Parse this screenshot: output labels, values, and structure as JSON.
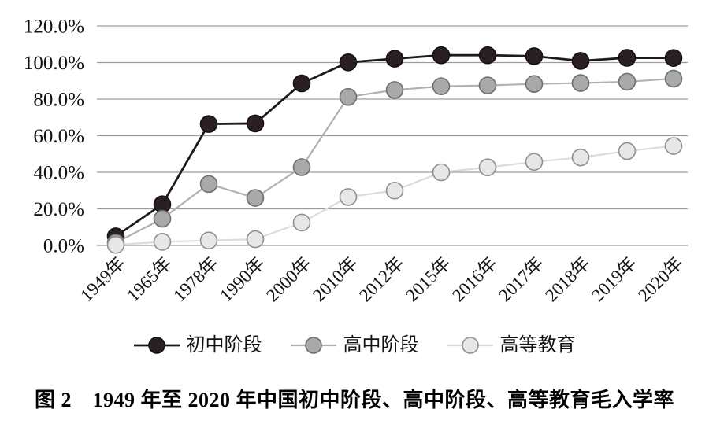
{
  "figure": {
    "caption": "图 2　1949 年至 2020 年中国初中阶段、高中阶段、高等教育毛入学率"
  },
  "colors": {
    "gridline": "#9c9c9c",
    "axis_text": "#141414"
  },
  "chart_data": {
    "type": "line",
    "title": "",
    "xlabel": "",
    "ylabel": "",
    "grid": "horizontal",
    "legend_position": "bottom",
    "ylim": [
      0,
      120
    ],
    "y_ticks": [
      {
        "value": 0,
        "label": "0.0%"
      },
      {
        "value": 20,
        "label": "20.0%"
      },
      {
        "value": 40,
        "label": "40.0%"
      },
      {
        "value": 60,
        "label": "60.0%"
      },
      {
        "value": 80,
        "label": "80.0%"
      },
      {
        "value": 100,
        "label": "100.0%"
      },
      {
        "value": 120,
        "label": "120.0%"
      }
    ],
    "categories": [
      "1949年",
      "1965年",
      "1978年",
      "1990年",
      "2000年",
      "2010年",
      "2012年",
      "2015年",
      "2016年",
      "2017年",
      "2018年",
      "2019年",
      "2020年"
    ],
    "series": [
      {
        "key": "junior-secondary",
        "name": "初中阶段",
        "line_color": "#1f191b",
        "marker_fill": "#2a2022",
        "marker_stroke": "#161012",
        "line_width": 2.8,
        "values": [
          5.0,
          22.5,
          66.4,
          66.7,
          88.6,
          100.1,
          102.1,
          104.0,
          104.0,
          103.5,
          100.9,
          102.6,
          102.5
        ]
      },
      {
        "key": "senior-secondary",
        "name": "高中阶段",
        "line_color": "#b2b1b1",
        "marker_fill": "#a9a9a9",
        "marker_stroke": "#6f6f6f",
        "line_width": 2.2,
        "values": [
          1.5,
          14.6,
          33.6,
          26.0,
          42.8,
          81.2,
          85.0,
          87.0,
          87.5,
          88.3,
          88.8,
          89.5,
          91.2
        ]
      },
      {
        "key": "higher-education",
        "name": "高等教育",
        "line_color": "#dcdcdc",
        "marker_fill": "#e7e7e7",
        "marker_stroke": "#8f8f8f",
        "line_width": 2.2,
        "values": [
          0.3,
          2.0,
          2.7,
          3.4,
          12.5,
          26.5,
          30.0,
          40.0,
          42.7,
          45.7,
          48.1,
          51.6,
          54.4
        ]
      }
    ]
  }
}
